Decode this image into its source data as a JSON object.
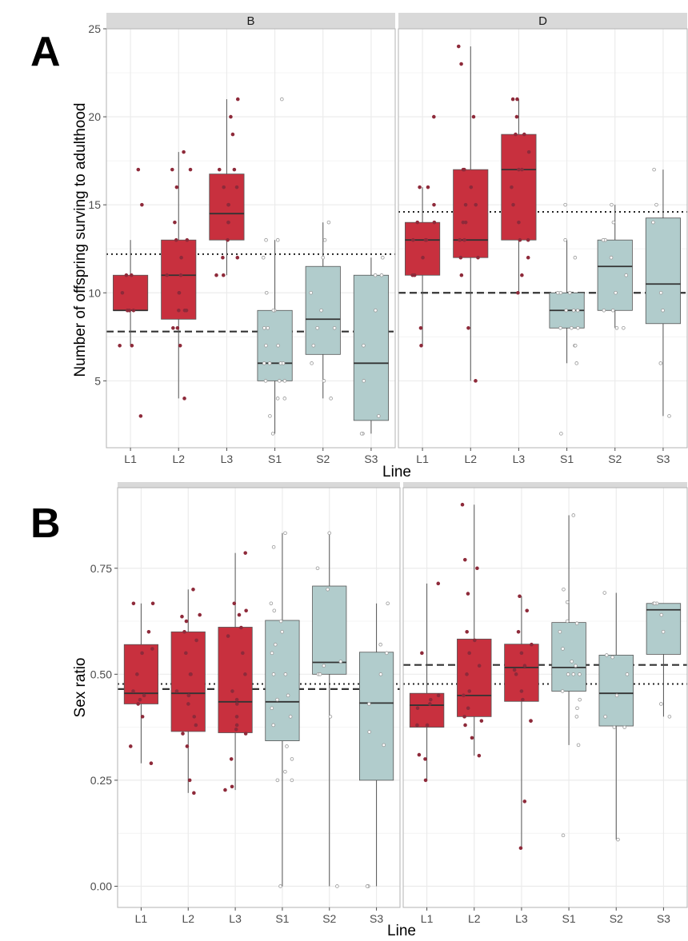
{
  "figure": {
    "panel_labels": [
      "A",
      "B"
    ],
    "colors": {
      "L": "#c8303e",
      "S": "#b1cccc",
      "pointL": "#8e2a3a",
      "pointS": "#9a9a9a",
      "strip": "#d9d9d9",
      "grid": "#ebebeb"
    }
  },
  "chart_data": [
    {
      "type": "box",
      "panel": "A",
      "facets": [
        "B",
        "D"
      ],
      "categories": [
        "L1",
        "L2",
        "L3",
        "S1",
        "S2",
        "S3"
      ],
      "xlabel": "Line",
      "ylabel": "Number of offspring surving to adulthood",
      "ylim": [
        1.2,
        25
      ],
      "yticks": [
        5,
        10,
        15,
        20,
        25
      ],
      "groups": {
        "B": {
          "boxes": [
            {
              "q1": 9,
              "median": 9,
              "q3": 11,
              "lo": 7,
              "hi": 13
            },
            {
              "q1": 8.5,
              "median": 11,
              "q3": 13,
              "lo": 4,
              "hi": 18
            },
            {
              "q1": 13,
              "median": 14.5,
              "q3": 16.75,
              "lo": 11,
              "hi": 21
            },
            {
              "q1": 5,
              "median": 6,
              "q3": 9,
              "lo": 2,
              "hi": 13
            },
            {
              "q1": 6.5,
              "median": 8.5,
              "q3": 11.5,
              "lo": 4,
              "hi": 14
            },
            {
              "q1": 2.75,
              "median": 6,
              "q3": 11,
              "lo": 2,
              "hi": 12
            }
          ],
          "points": [
            [
              3,
              7,
              7,
              9,
              9,
              9,
              10,
              11,
              11,
              15,
              17
            ],
            [
              4,
              7,
              8,
              8,
              9,
              9,
              9,
              10,
              10,
              11,
              11,
              12,
              13,
              13,
              14,
              16,
              17,
              17,
              18
            ],
            [
              11,
              11,
              12,
              12,
              13,
              14,
              14,
              15,
              15,
              16,
              16,
              17,
              17,
              19,
              20,
              21
            ],
            [
              2,
              3,
              4,
              4,
              5,
              5,
              5,
              6,
              6,
              6,
              6,
              7,
              7,
              8,
              8,
              9,
              9,
              10,
              12,
              13,
              13,
              21
            ],
            [
              4,
              5,
              6,
              7,
              8,
              8,
              9,
              10,
              12,
              13,
              14
            ],
            [
              2,
              2,
              3,
              5,
              7,
              9,
              11,
              11,
              12
            ]
          ],
          "hline_dotted": 12.2,
          "hline_dashed": 7.8
        },
        "D": {
          "boxes": [
            {
              "q1": 11,
              "median": 13,
              "q3": 14,
              "lo": 7,
              "hi": 16
            },
            {
              "q1": 12,
              "median": 13,
              "q3": 17,
              "lo": 5,
              "hi": 24
            },
            {
              "q1": 13,
              "median": 17,
              "q3": 19,
              "lo": 10,
              "hi": 21
            },
            {
              "q1": 8,
              "median": 9,
              "q3": 10,
              "lo": 6,
              "hi": 13
            },
            {
              "q1": 9,
              "median": 11.5,
              "q3": 13,
              "lo": 8,
              "hi": 15
            },
            {
              "q1": 8.25,
              "median": 10.5,
              "q3": 14.25,
              "lo": 3,
              "hi": 17
            }
          ],
          "points": [
            [
              7,
              8,
              11,
              11,
              12,
              13,
              13,
              13,
              14,
              14,
              15,
              16,
              16,
              20
            ],
            [
              5,
              8,
              11,
              12,
              12,
              13,
              13,
              14,
              14,
              15,
              15,
              16,
              17,
              17,
              20,
              23,
              24
            ],
            [
              10,
              11,
              12,
              13,
              13,
              14,
              15,
              16,
              17,
              17,
              18,
              19,
              19,
              20,
              21,
              21
            ],
            [
              2,
              6,
              7,
              7,
              8,
              8,
              8,
              9,
              9,
              9,
              10,
              10,
              10,
              12,
              13,
              15
            ],
            [
              8,
              8,
              9,
              9,
              10,
              11,
              12,
              13,
              13,
              14,
              15
            ],
            [
              3,
              6,
              9,
              10,
              14,
              15,
              17
            ]
          ],
          "hline_dotted": 14.6,
          "hline_dashed": 10
        }
      }
    },
    {
      "type": "box",
      "panel": "B",
      "facets": [
        "",
        ""
      ],
      "categories": [
        "L1",
        "L2",
        "L3",
        "S1",
        "S2",
        "S3"
      ],
      "xlabel": "Line",
      "ylabel": "Sex ratio",
      "ylim": [
        -0.05,
        0.94
      ],
      "yticks": [
        "0.00",
        "0.25",
        "0.50",
        "0.75"
      ],
      "groups": {
        "left": {
          "boxes": [
            {
              "q1": 0.43,
              "median": 0.455,
              "q3": 0.57,
              "lo": 0.29,
              "hi": 0.667
            },
            {
              "q1": 0.365,
              "median": 0.455,
              "q3": 0.6,
              "lo": 0.22,
              "hi": 0.7
            },
            {
              "q1": 0.362,
              "median": 0.435,
              "q3": 0.611,
              "lo": 0.227,
              "hi": 0.786
            },
            {
              "q1": 0.343,
              "median": 0.435,
              "q3": 0.627,
              "lo": 0.0,
              "hi": 0.833
            },
            {
              "q1": 0.5,
              "median": 0.528,
              "q3": 0.708,
              "lo": 0.0,
              "hi": 0.833
            },
            {
              "q1": 0.25,
              "median": 0.432,
              "q3": 0.552,
              "lo": 0.0,
              "hi": 0.667
            }
          ],
          "points": [
            [
              0.29,
              0.33,
              0.4,
              0.43,
              0.44,
              0.45,
              0.46,
              0.5,
              0.55,
              0.56,
              0.6,
              0.667,
              0.667
            ],
            [
              0.22,
              0.25,
              0.33,
              0.36,
              0.38,
              0.4,
              0.43,
              0.45,
              0.45,
              0.46,
              0.5,
              0.5,
              0.55,
              0.58,
              0.6,
              0.625,
              0.636,
              0.64,
              0.7
            ],
            [
              0.227,
              0.235,
              0.3,
              0.36,
              0.37,
              0.38,
              0.4,
              0.43,
              0.44,
              0.46,
              0.5,
              0.55,
              0.59,
              0.61,
              0.64,
              0.65,
              0.667,
              0.786
            ],
            [
              0.0,
              0.25,
              0.25,
              0.27,
              0.3,
              0.33,
              0.38,
              0.4,
              0.42,
              0.44,
              0.45,
              0.5,
              0.5,
              0.55,
              0.57,
              0.6,
              0.625,
              0.65,
              0.667,
              0.8,
              0.833
            ],
            [
              0.0,
              0.4,
              0.5,
              0.5,
              0.52,
              0.53,
              0.7,
              0.75,
              0.833
            ],
            [
              0.0,
              0.0,
              0.333,
              0.364,
              0.43,
              0.5,
              0.55,
              0.57,
              0.667
            ]
          ],
          "hline_dotted": 0.477,
          "hline_dashed": 0.465
        },
        "right": {
          "boxes": [
            {
              "q1": 0.375,
              "median": 0.427,
              "q3": 0.455,
              "lo": 0.25,
              "hi": 0.714
            },
            {
              "q1": 0.4,
              "median": 0.45,
              "q3": 0.583,
              "lo": 0.308,
              "hi": 0.9
            },
            {
              "q1": 0.436,
              "median": 0.516,
              "q3": 0.571,
              "lo": 0.09,
              "hi": 0.684
            },
            {
              "q1": 0.46,
              "median": 0.516,
              "q3": 0.622,
              "lo": 0.333,
              "hi": 0.875
            },
            {
              "q1": 0.378,
              "median": 0.455,
              "q3": 0.545,
              "lo": 0.11,
              "hi": 0.692
            },
            {
              "q1": 0.547,
              "median": 0.652,
              "q3": 0.667,
              "lo": 0.4,
              "hi": 0.667
            }
          ],
          "points": [
            [
              0.25,
              0.3,
              0.31,
              0.38,
              0.38,
              0.42,
              0.43,
              0.44,
              0.45,
              0.55,
              0.714
            ],
            [
              0.308,
              0.35,
              0.38,
              0.39,
              0.4,
              0.42,
              0.45,
              0.46,
              0.5,
              0.52,
              0.55,
              0.58,
              0.6,
              0.69,
              0.75,
              0.77,
              0.9
            ],
            [
              0.09,
              0.2,
              0.39,
              0.39,
              0.44,
              0.46,
              0.5,
              0.51,
              0.52,
              0.55,
              0.57,
              0.6,
              0.65,
              0.684
            ],
            [
              0.12,
              0.333,
              0.4,
              0.42,
              0.44,
              0.46,
              0.5,
              0.5,
              0.5,
              0.52,
              0.53,
              0.56,
              0.6,
              0.62,
              0.625,
              0.67,
              0.7,
              0.875
            ],
            [
              0.11,
              0.375,
              0.375,
              0.4,
              0.45,
              0.5,
              0.54,
              0.545,
              0.692
            ],
            [
              0.4,
              0.43,
              0.6,
              0.64,
              0.667,
              0.667,
              0.667
            ]
          ],
          "hline_dotted": 0.477,
          "hline_dashed": 0.522
        }
      }
    }
  ]
}
